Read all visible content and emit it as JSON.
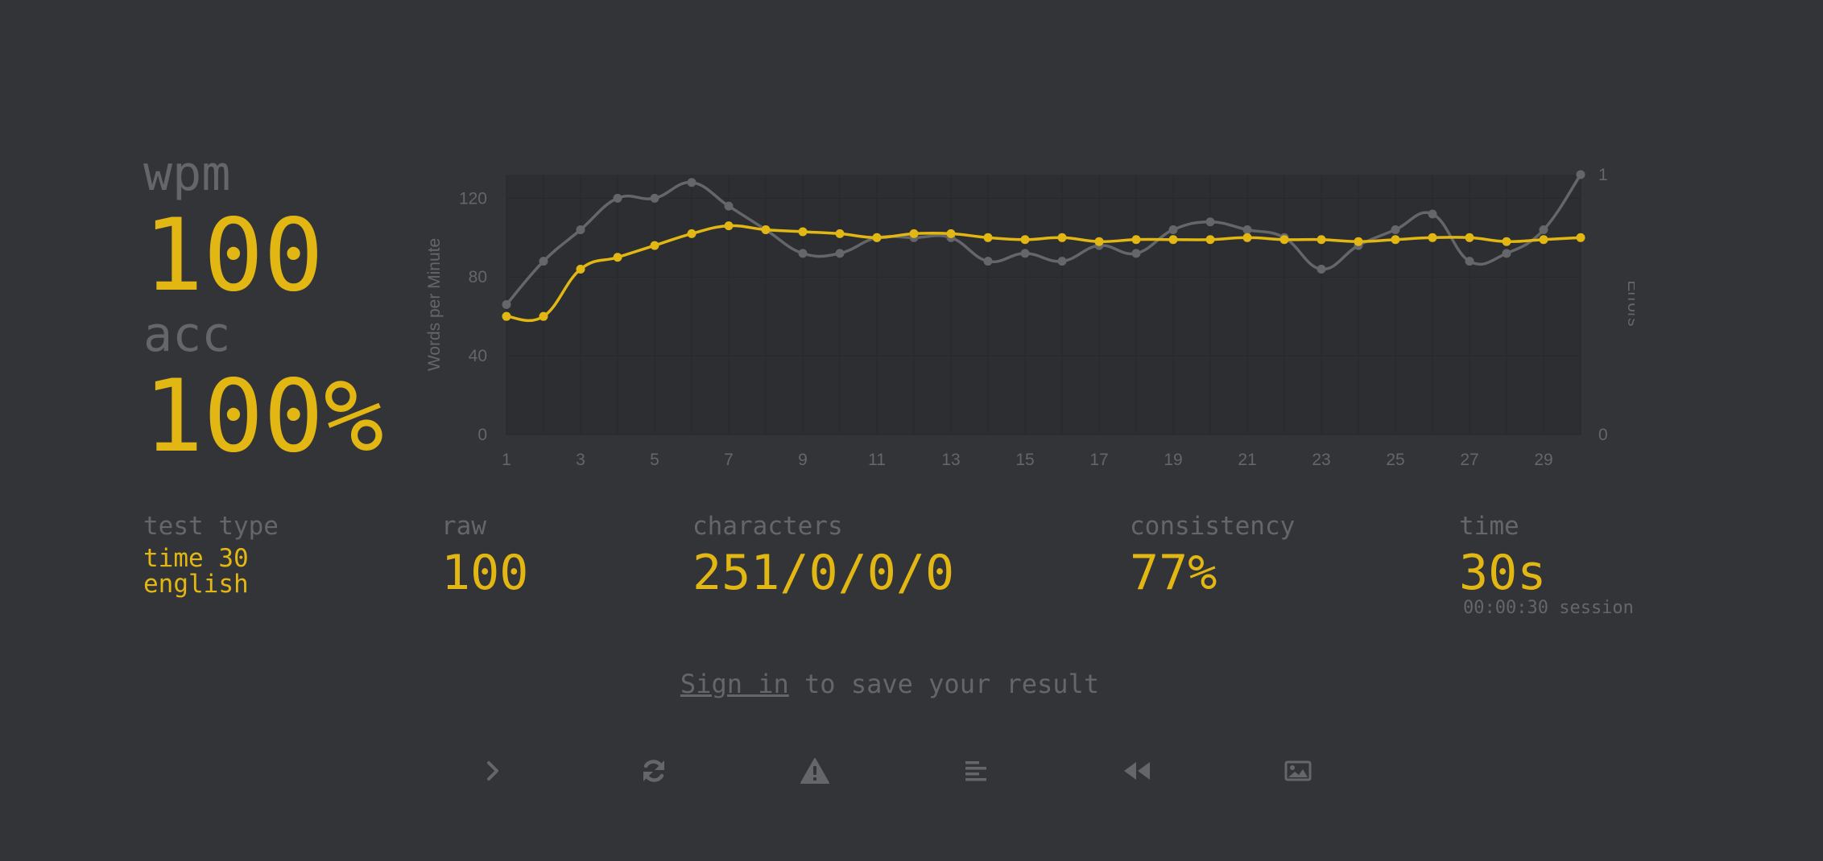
{
  "summary": {
    "wpm_label": "wpm",
    "wpm_value": "100",
    "acc_label": "acc",
    "acc_value": "100%"
  },
  "stats": {
    "test_type_label": "test type",
    "test_type_mode": "time 30",
    "test_type_language": "english",
    "raw_label": "raw",
    "raw_value": "100",
    "characters_label": "characters",
    "characters_value": "251/0/0/0",
    "consistency_label": "consistency",
    "consistency_value": "77%",
    "time_label": "time",
    "time_value": "30s",
    "session_note": "00:00:30 session"
  },
  "signin": {
    "link_label": "Sign in",
    "rest_text": " to save your result"
  },
  "actions": [
    {
      "name": "next-test-button",
      "icon": "chevron-right-icon"
    },
    {
      "name": "restart-test-button",
      "icon": "refresh-icon"
    },
    {
      "name": "report-button",
      "icon": "warning-icon"
    },
    {
      "name": "words-history-button",
      "icon": "align-left-icon"
    },
    {
      "name": "replay-button",
      "icon": "backward-icon"
    },
    {
      "name": "screenshot-button",
      "icon": "image-icon"
    }
  ],
  "colors": {
    "background": "#323437",
    "accent": "#e2b714",
    "sub": "#646669",
    "raw_line": "#646669",
    "plot_area": "#2c2e31"
  },
  "chart_data": {
    "type": "line",
    "x": [
      1,
      2,
      3,
      4,
      5,
      6,
      7,
      8,
      9,
      10,
      11,
      12,
      13,
      14,
      15,
      16,
      17,
      18,
      19,
      20,
      21,
      22,
      23,
      24,
      25,
      26,
      27,
      28,
      29,
      30
    ],
    "x_ticks": [
      1,
      3,
      5,
      7,
      9,
      11,
      13,
      15,
      17,
      19,
      21,
      23,
      25,
      27,
      29
    ],
    "ylabel": "Words per Minute",
    "ylim": [
      0,
      132
    ],
    "y_ticks": [
      0,
      40,
      80,
      120
    ],
    "y2label": "Errors",
    "y2lim": [
      0,
      1
    ],
    "y2_ticks": [
      0,
      1
    ],
    "series": [
      {
        "color": "#646669",
        "values": [
          66,
          88,
          104,
          120,
          120,
          128,
          116,
          104,
          92,
          92,
          100,
          100,
          100,
          88,
          92,
          88,
          96,
          92,
          104,
          108,
          104,
          100,
          84,
          96,
          104,
          112,
          88,
          92,
          104,
          132
        ]
      },
      {
        "color": "#e2b714",
        "values": [
          60,
          60,
          84,
          90,
          96,
          102,
          106,
          104,
          103,
          102,
          100,
          102,
          102,
          100,
          99,
          100,
          98,
          99,
          99,
          99,
          100,
          99,
          99,
          98,
          99,
          100,
          100,
          98,
          99,
          100
        ]
      }
    ],
    "grid": true,
    "legend": "none"
  }
}
